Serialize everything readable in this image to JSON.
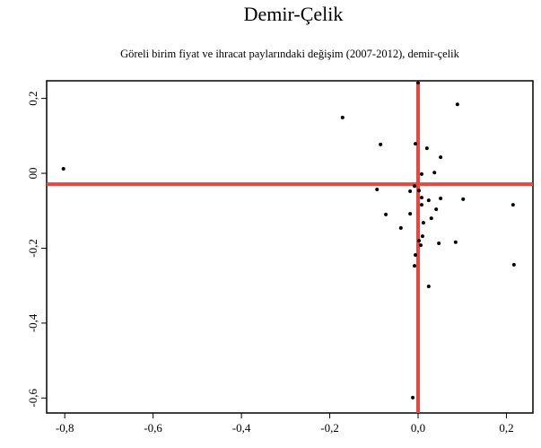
{
  "chart_data": {
    "type": "scatter",
    "title": "Demir-Çelik",
    "subtitle": "Göreli birim fiyat ve ihracat paylarındaki değişim (2007-2012), demir-çelik",
    "x": [
      -0.803,
      -0.171,
      -0.085,
      0,
      0.089,
      -0.006,
      0.02,
      0.051,
      0.008,
      0.037,
      -0.093,
      -0.018,
      -0.008,
      0.002,
      0.008,
      0.024,
      0.051,
      0.102,
      0.215,
      0.008,
      0.041,
      -0.073,
      -0.018,
      0.03,
      0.012,
      -0.039,
      0.01,
      0.002,
      0.085,
      0.047,
      0.006,
      -0.006,
      -0.008,
      0.217,
      0.024,
      -0.012
    ],
    "values": [
      0.012,
      0.149,
      0.077,
      0.242,
      0.184,
      0.079,
      0.067,
      0.043,
      -0.002,
      0.002,
      -0.043,
      -0.048,
      -0.034,
      -0.046,
      -0.065,
      -0.072,
      -0.067,
      -0.069,
      -0.084,
      -0.084,
      -0.096,
      -0.11,
      -0.108,
      -0.12,
      -0.132,
      -0.146,
      -0.168,
      -0.18,
      -0.184,
      -0.187,
      -0.192,
      -0.218,
      -0.247,
      -0.244,
      -0.302,
      -0.599
    ],
    "color": "#000000",
    "xlim": [
      -0.841,
      0.26
    ],
    "ylim": [
      -0.64,
      0.247
    ],
    "xticks": [
      {
        "value": -0.8,
        "label": "-0,8"
      },
      {
        "value": -0.6,
        "label": "-0,6"
      },
      {
        "value": -0.4,
        "label": "-0,4"
      },
      {
        "value": -0.2,
        "label": "-0,2"
      },
      {
        "value": 0,
        "label": "0,0"
      },
      {
        "value": 0.2,
        "label": "0,2"
      }
    ],
    "yticks": [
      {
        "value": 0.2,
        "label": "0,2"
      },
      {
        "value": 0,
        "label": "00"
      },
      {
        "value": -0.2,
        "label": "-0,2"
      },
      {
        "value": -0.4,
        "label": "-0,4"
      },
      {
        "value": -0.6,
        "label": "-0,6"
      }
    ],
    "reference_x": 0,
    "reference_y": -0.029,
    "reference_color": "#e8463f"
  }
}
